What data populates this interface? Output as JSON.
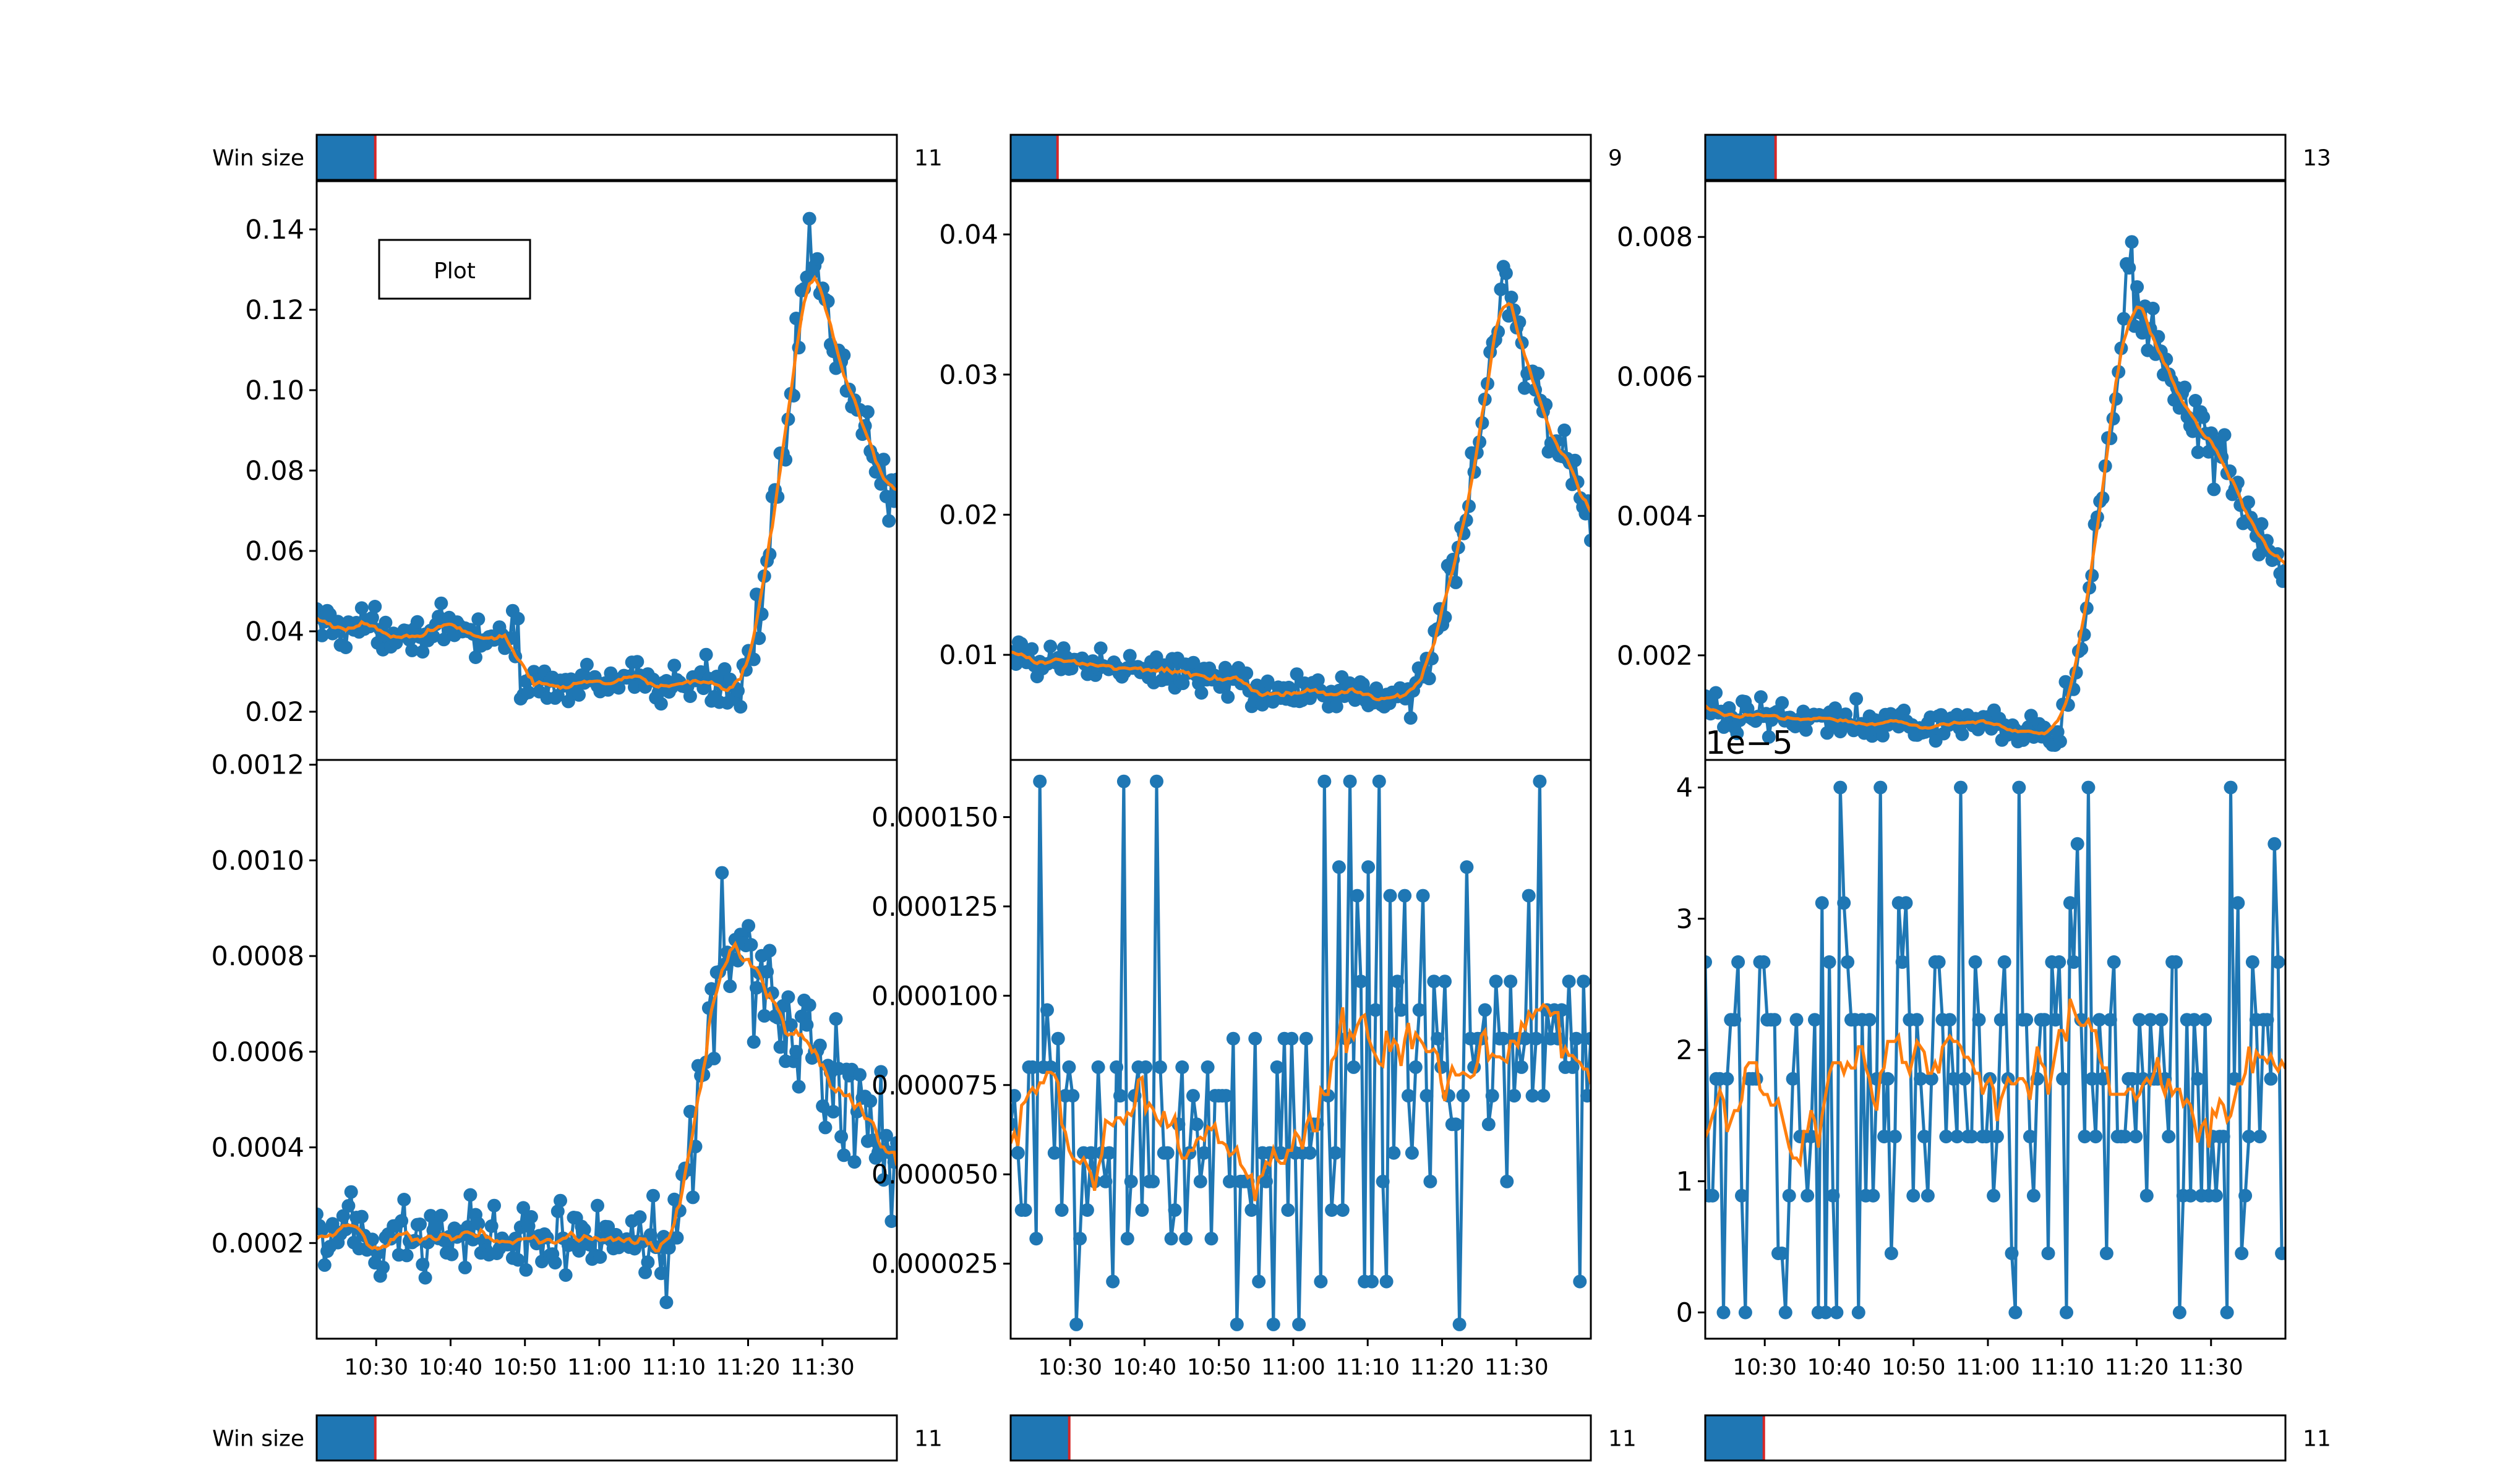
{
  "colors": {
    "series_raw": "#1f77b4",
    "series_smooth": "#ff7f0e",
    "slider_fill": "#1f77b4",
    "slider_marker": "#d62728",
    "axes": "#000000",
    "background": "#ffffff"
  },
  "top_sliders": [
    {
      "label": "Win size",
      "value": 11,
      "min": 1,
      "max": 100
    },
    {
      "label": "",
      "value": 9,
      "min": 1,
      "max": 100
    },
    {
      "label": "",
      "value": 13,
      "min": 1,
      "max": 100
    }
  ],
  "bottom_sliders": [
    {
      "label": "Win size",
      "value": 11,
      "min": 1,
      "max": 100
    },
    {
      "label": "",
      "value": 11,
      "min": 1,
      "max": 100
    },
    {
      "label": "",
      "value": 11,
      "min": 1,
      "max": 100
    }
  ],
  "plot_button": {
    "label": "Plot"
  },
  "chart_data": [
    {
      "type": "line",
      "xlim": [
        "10:22",
        "11:40"
      ],
      "ylim": [
        0.008,
        0.152
      ],
      "yticks": [
        "0.02",
        "0.04",
        "0.06",
        "0.08",
        "0.10",
        "0.12",
        "0.14"
      ],
      "ytick_values": [
        0.02,
        0.04,
        0.06,
        0.08,
        0.1,
        0.12,
        0.14
      ],
      "xticks": [],
      "offset_text": "",
      "shape": {
        "kind": "peak",
        "baseline_start": 0.042,
        "baseline_mid": 0.038,
        "dip_start": 0.35,
        "dip_level": 0.027,
        "rise_start": 0.72,
        "peak_pos": 0.85,
        "peak": 0.137,
        "end": 0.07,
        "noise": 0.005
      },
      "series": [
        {
          "marker": "o",
          "style": "raw",
          "points": 220
        },
        {
          "marker": "",
          "style": "smoothed",
          "window": 11
        }
      ]
    },
    {
      "type": "line",
      "xlim": [
        "10:22",
        "11:40"
      ],
      "ylim": [
        0.0025,
        0.0438
      ],
      "yticks": [
        "0.01",
        "0.02",
        "0.03",
        "0.04"
      ],
      "ytick_values": [
        0.01,
        0.02,
        0.03,
        0.04
      ],
      "xticks": [],
      "offset_text": "",
      "shape": {
        "kind": "peak",
        "baseline_start": 0.0098,
        "baseline_mid": 0.0085,
        "dip_start": 0.4,
        "dip_level": 0.0072,
        "rise_start": 0.68,
        "peak_pos": 0.85,
        "peak": 0.037,
        "end": 0.02,
        "noise": 0.0012
      },
      "series": [
        {
          "marker": "o",
          "style": "raw",
          "points": 220
        },
        {
          "marker": "",
          "style": "smoothed",
          "window": 9
        }
      ]
    },
    {
      "type": "line",
      "xlim": [
        "10:22",
        "11:40"
      ],
      "ylim": [
        0.0005,
        0.0088
      ],
      "yticks": [
        "0.002",
        "0.004",
        "0.006",
        "0.008"
      ],
      "ytick_values": [
        0.002,
        0.004,
        0.006,
        0.008
      ],
      "xticks": [],
      "offset_text": "",
      "shape": {
        "kind": "peak",
        "baseline_start": 0.0012,
        "baseline_mid": 0.001,
        "dip_start": 0.5,
        "dip_level": 0.0009,
        "rise_start": 0.6,
        "peak_pos": 0.73,
        "peak": 0.0075,
        "end": 0.0032,
        "noise": 0.00025
      },
      "series": [
        {
          "marker": "o",
          "style": "raw",
          "points": 220
        },
        {
          "marker": "",
          "style": "smoothed",
          "window": 13
        }
      ]
    },
    {
      "type": "line",
      "xlim": [
        "10:22",
        "11:40"
      ],
      "ylim": [
        0.0,
        0.00121
      ],
      "yticks": [
        "0.0002",
        "0.0004",
        "0.0006",
        "0.0008",
        "0.0010",
        "0.0012"
      ],
      "ytick_values": [
        0.0002,
        0.0004,
        0.0006,
        0.0008,
        0.001,
        0.0012
      ],
      "xticks": [
        "10:30",
        "10:40",
        "10:50",
        "11:00",
        "11:10",
        "11:20",
        "11:30"
      ],
      "offset_text": "",
      "shape": {
        "kind": "peak",
        "baseline_start": 0.00022,
        "baseline_mid": 0.0002,
        "dip_start": 0.6,
        "dip_level": 0.00018,
        "rise_start": 0.6,
        "peak_pos": 0.7,
        "peak": 0.00088,
        "end": 0.0004,
        "noise": 8e-05
      },
      "series": [
        {
          "marker": "o",
          "style": "raw",
          "points": 220
        },
        {
          "marker": "",
          "style": "smoothed",
          "window": 11
        }
      ]
    },
    {
      "type": "line",
      "xlim": [
        "10:22",
        "11:40"
      ],
      "ylim": [
        4e-06,
        0.000166
      ],
      "yticks": [
        "0.000025",
        "0.000050",
        "0.000075",
        "0.000100",
        "0.000125",
        "0.000150"
      ],
      "ytick_values": [
        2.5e-05,
        5e-05,
        7.5e-05,
        0.0001,
        0.000125,
        0.00015
      ],
      "xticks": [
        "10:30",
        "10:40",
        "10:50",
        "11:00",
        "11:10",
        "11:20",
        "11:30"
      ],
      "offset_text": "",
      "shape": {
        "kind": "discrete",
        "levels": [
          8e-06,
          2e-05,
          3.2e-05,
          4e-05,
          4.8e-05,
          5.6e-05,
          6.4e-05,
          7.2e-05,
          8e-05,
          8.8e-05,
          9.6e-05,
          0.000104,
          0.000128,
          0.000136,
          0.00016
        ],
        "center": 5.8e-05,
        "late_center": 8.5e-05,
        "late_start": 0.58,
        "spread": 4
      },
      "series": [
        {
          "marker": "o",
          "style": "raw",
          "points": 160
        },
        {
          "marker": "",
          "style": "smoothed",
          "window": 11
        }
      ]
    },
    {
      "type": "line",
      "xlim": [
        "10:22",
        "11:40"
      ],
      "ylim": [
        -2e-06,
        4.21e-05
      ],
      "yticks": [
        "0",
        "1",
        "2",
        "3",
        "4"
      ],
      "ytick_values": [
        0,
        1e-05,
        2e-05,
        3e-05,
        4e-05
      ],
      "xticks": [
        "10:30",
        "10:40",
        "10:50",
        "11:00",
        "11:10",
        "11:20",
        "11:30"
      ],
      "offset_text": "1e−5",
      "shape": {
        "kind": "discrete",
        "levels": [
          0.0,
          4.5e-06,
          8.9e-06,
          1.34e-05,
          1.78e-05,
          2.23e-05,
          2.67e-05,
          3.12e-05,
          3.57e-05,
          4e-05
        ],
        "center": 1.8e-05,
        "late_center": 1.8e-05,
        "late_start": 1.0,
        "spread": 3
      },
      "series": [
        {
          "marker": "o",
          "style": "raw",
          "points": 160
        },
        {
          "marker": "",
          "style": "smoothed",
          "window": 11
        }
      ]
    }
  ]
}
